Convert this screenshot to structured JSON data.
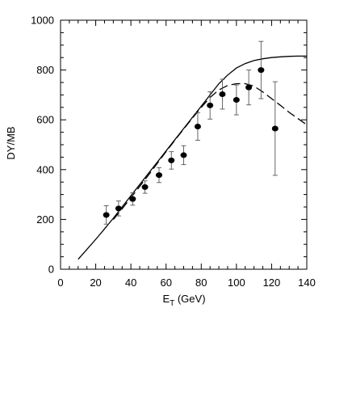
{
  "chart_data": {
    "type": "scatter",
    "title": "",
    "xlabel": "E",
    "xlabel_subscript": "T",
    "xlabel_unit": " (GeV)",
    "ylabel": "DY/MB",
    "xlim": [
      0,
      140
    ],
    "ylim": [
      0,
      1000
    ],
    "xticks": [
      0,
      20,
      40,
      60,
      80,
      100,
      120,
      140
    ],
    "yticks": [
      0,
      200,
      400,
      600,
      800,
      1000
    ],
    "x_minor_step": 5,
    "y_minor_step": 50,
    "grid": false,
    "legend": "none",
    "points": [
      {
        "x": 26,
        "y": 218,
        "err": 37
      },
      {
        "x": 33,
        "y": 244,
        "err": 30
      },
      {
        "x": 41,
        "y": 282,
        "err": 25
      },
      {
        "x": 48,
        "y": 330,
        "err": 25
      },
      {
        "x": 56,
        "y": 378,
        "err": 30
      },
      {
        "x": 63,
        "y": 437,
        "err": 35
      },
      {
        "x": 70,
        "y": 458,
        "err": 38
      },
      {
        "x": 78,
        "y": 573,
        "err": 55
      },
      {
        "x": 85,
        "y": 658,
        "err": 55
      },
      {
        "x": 92,
        "y": 703,
        "err": 60
      },
      {
        "x": 100,
        "y": 680,
        "err": 60
      },
      {
        "x": 107,
        "y": 730,
        "err": 70
      },
      {
        "x": 114,
        "y": 800,
        "err": 115
      },
      {
        "x": 122,
        "y": 565,
        "err": 188
      }
    ],
    "series": [
      {
        "style": "solid",
        "x": [
          10,
          15,
          20,
          25,
          30,
          35,
          40,
          45,
          50,
          55,
          60,
          65,
          70,
          75,
          80,
          85,
          90,
          95,
          100,
          105,
          110,
          115,
          120,
          125,
          130,
          135,
          140
        ],
        "y": [
          40,
          80,
          120,
          162,
          205,
          250,
          295,
          340,
          385,
          430,
          475,
          520,
          565,
          610,
          655,
          700,
          745,
          780,
          808,
          826,
          838,
          845,
          850,
          853,
          855,
          856,
          856
        ]
      },
      {
        "style": "dashed",
        "x": [
          30,
          35,
          40,
          45,
          50,
          55,
          60,
          65,
          70,
          75,
          80,
          85,
          90,
          95,
          100,
          105,
          110,
          115,
          120,
          125,
          130,
          135,
          140
        ],
        "y": [
          200,
          243,
          287,
          332,
          378,
          425,
          472,
          518,
          563,
          607,
          650,
          690,
          720,
          738,
          745,
          745,
          735,
          712,
          685,
          658,
          630,
          605,
          580
        ]
      }
    ]
  }
}
